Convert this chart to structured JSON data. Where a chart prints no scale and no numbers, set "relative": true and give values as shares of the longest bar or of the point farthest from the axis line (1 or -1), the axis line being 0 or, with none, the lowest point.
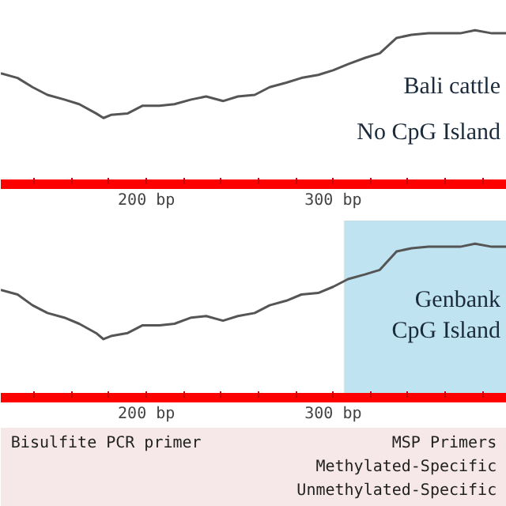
{
  "chart_data": [
    {
      "type": "line",
      "relative": true,
      "x": [
        122,
        131,
        139,
        147,
        156,
        164,
        173,
        177,
        181,
        190,
        198,
        207,
        215,
        224,
        232,
        241,
        249,
        258,
        266,
        275,
        283,
        292,
        300,
        308,
        317,
        325,
        334,
        342,
        351,
        359,
        368,
        376,
        385,
        393
      ],
      "series": [
        {
          "color": "#555555",
          "values": [
            0.72,
            0.69,
            0.63,
            0.58,
            0.55,
            0.52,
            0.46,
            0.43,
            0.45,
            0.46,
            0.51,
            0.51,
            0.52,
            0.55,
            0.57,
            0.54,
            0.57,
            0.58,
            0.63,
            0.66,
            0.69,
            0.71,
            0.74,
            0.78,
            0.82,
            0.85,
            0.95,
            0.97,
            0.98,
            0.98,
            0.98,
            1,
            0.98,
            0.98
          ]
        }
      ],
      "xlim": [
        122,
        393
      ],
      "xticks": [
        {
          "value": 140,
          "label": null
        },
        {
          "value": 160,
          "label": null
        },
        {
          "value": 180,
          "label": null
        },
        {
          "value": 200,
          "label": "200 bp"
        },
        {
          "value": 220,
          "label": null
        },
        {
          "value": 240,
          "label": null
        },
        {
          "value": 260,
          "label": null
        },
        {
          "value": 280,
          "label": null
        },
        {
          "value": 300,
          "label": "300 bp"
        },
        {
          "value": 320,
          "label": null
        },
        {
          "value": 340,
          "label": null
        },
        {
          "value": 360,
          "label": null
        },
        {
          "value": 380,
          "label": null
        }
      ],
      "annotations": [
        "Bali cattle",
        "No CpG Island"
      ]
    },
    {
      "type": "line",
      "relative": true,
      "x": [
        122,
        131,
        139,
        147,
        156,
        164,
        173,
        177,
        181,
        190,
        198,
        207,
        215,
        224,
        232,
        241,
        249,
        258,
        266,
        275,
        283,
        292,
        300,
        308,
        317,
        325,
        334,
        342,
        351,
        359,
        368,
        376,
        385,
        393
      ],
      "series": [
        {
          "color": "#555555",
          "values": [
            0.7,
            0.67,
            0.6,
            0.55,
            0.52,
            0.48,
            0.42,
            0.38,
            0.4,
            0.42,
            0.47,
            0.47,
            0.48,
            0.52,
            0.53,
            0.5,
            0.53,
            0.55,
            0.6,
            0.63,
            0.67,
            0.68,
            0.72,
            0.77,
            0.8,
            0.83,
            0.95,
            0.97,
            0.98,
            0.98,
            0.98,
            1,
            0.98,
            0.98
          ]
        }
      ],
      "xlim": [
        122,
        393
      ],
      "xticks": [
        {
          "value": 140,
          "label": null
        },
        {
          "value": 160,
          "label": null
        },
        {
          "value": 180,
          "label": null
        },
        {
          "value": 200,
          "label": "200 bp"
        },
        {
          "value": 220,
          "label": null
        },
        {
          "value": 240,
          "label": null
        },
        {
          "value": 260,
          "label": null
        },
        {
          "value": 280,
          "label": null
        },
        {
          "value": 300,
          "label": "300 bp"
        },
        {
          "value": 320,
          "label": null
        },
        {
          "value": 340,
          "label": null
        },
        {
          "value": 360,
          "label": null
        },
        {
          "value": 380,
          "label": null
        }
      ],
      "bands": [
        {
          "axis": "x",
          "from": 306,
          "to": 393,
          "label": "Genbank\nCpG Island",
          "color": "#bfe3f0"
        }
      ]
    },
    {
      "type": "other",
      "annotations": [
        "Bisulfite PCR primer",
        "MSP Primers",
        "Methylated-Specific",
        "Unmethylated-Specific"
      ]
    }
  ]
}
